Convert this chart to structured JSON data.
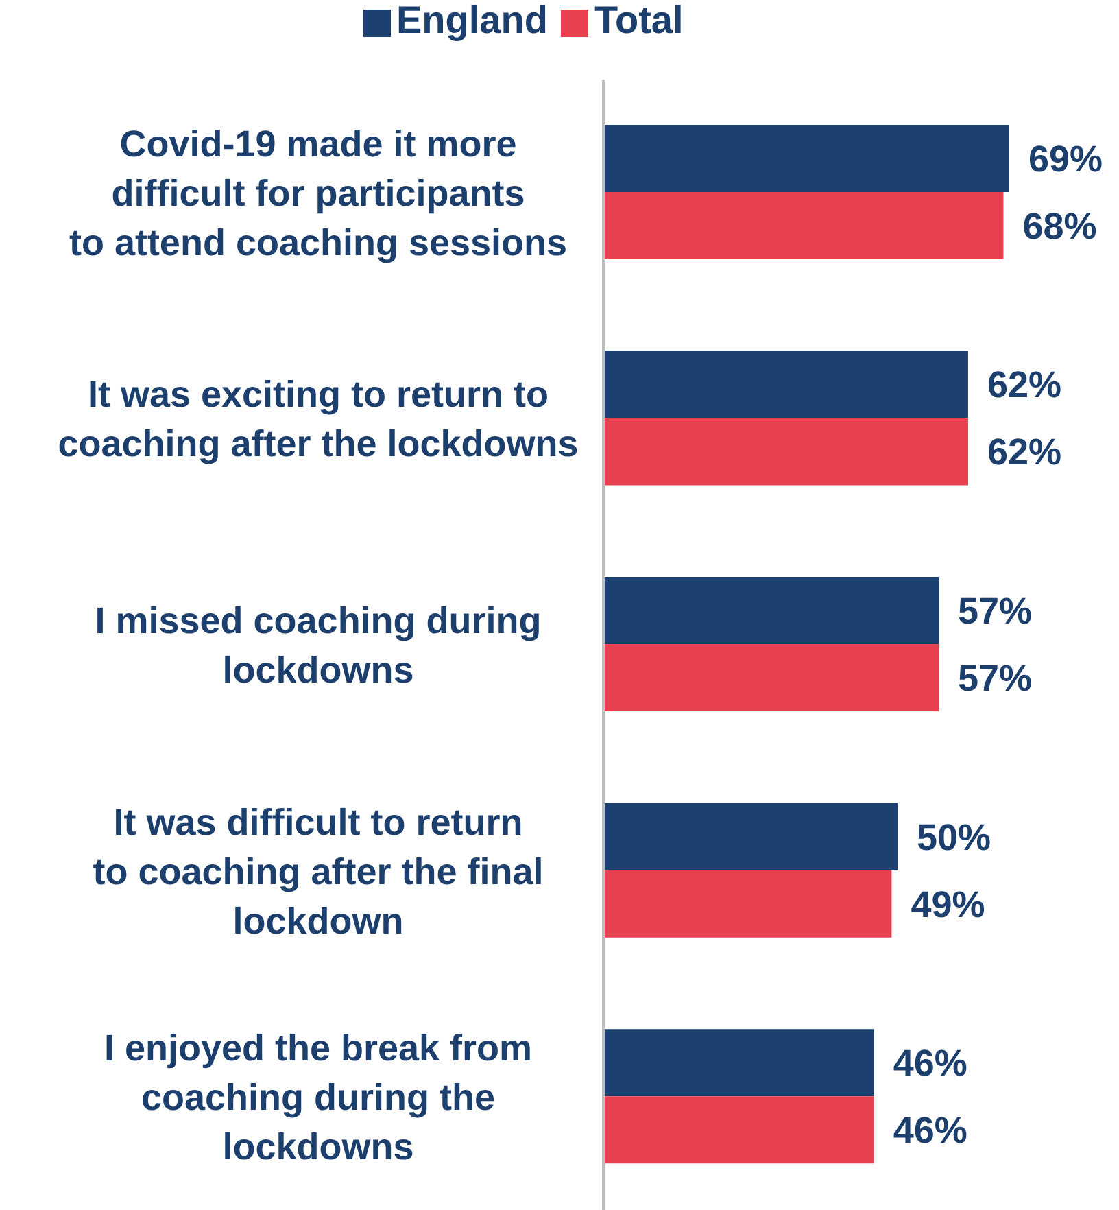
{
  "chart_data": {
    "type": "bar",
    "orientation": "horizontal",
    "legend": "top",
    "categories": [
      "Covid-19 made it more difficult for participants to attend coaching sessions",
      "It was exciting to return to coaching after the lockdowns",
      "I missed coaching during lockdowns",
      "It was difficult to return to coaching after the final lockdown",
      "I enjoyed the break from coaching during the lockdowns"
    ],
    "series": [
      {
        "name": "England",
        "color": "#1c4170",
        "values": [
          69,
          62,
          57,
          50,
          46
        ],
        "value_labels": [
          "69%",
          "62%",
          "57%",
          "50%",
          "46%"
        ]
      },
      {
        "name": "Total",
        "color": "#e84150",
        "values": [
          68,
          62,
          57,
          49,
          46
        ],
        "value_labels": [
          "68%",
          "62%",
          "57%",
          "49%",
          "46%"
        ]
      }
    ]
  }
}
